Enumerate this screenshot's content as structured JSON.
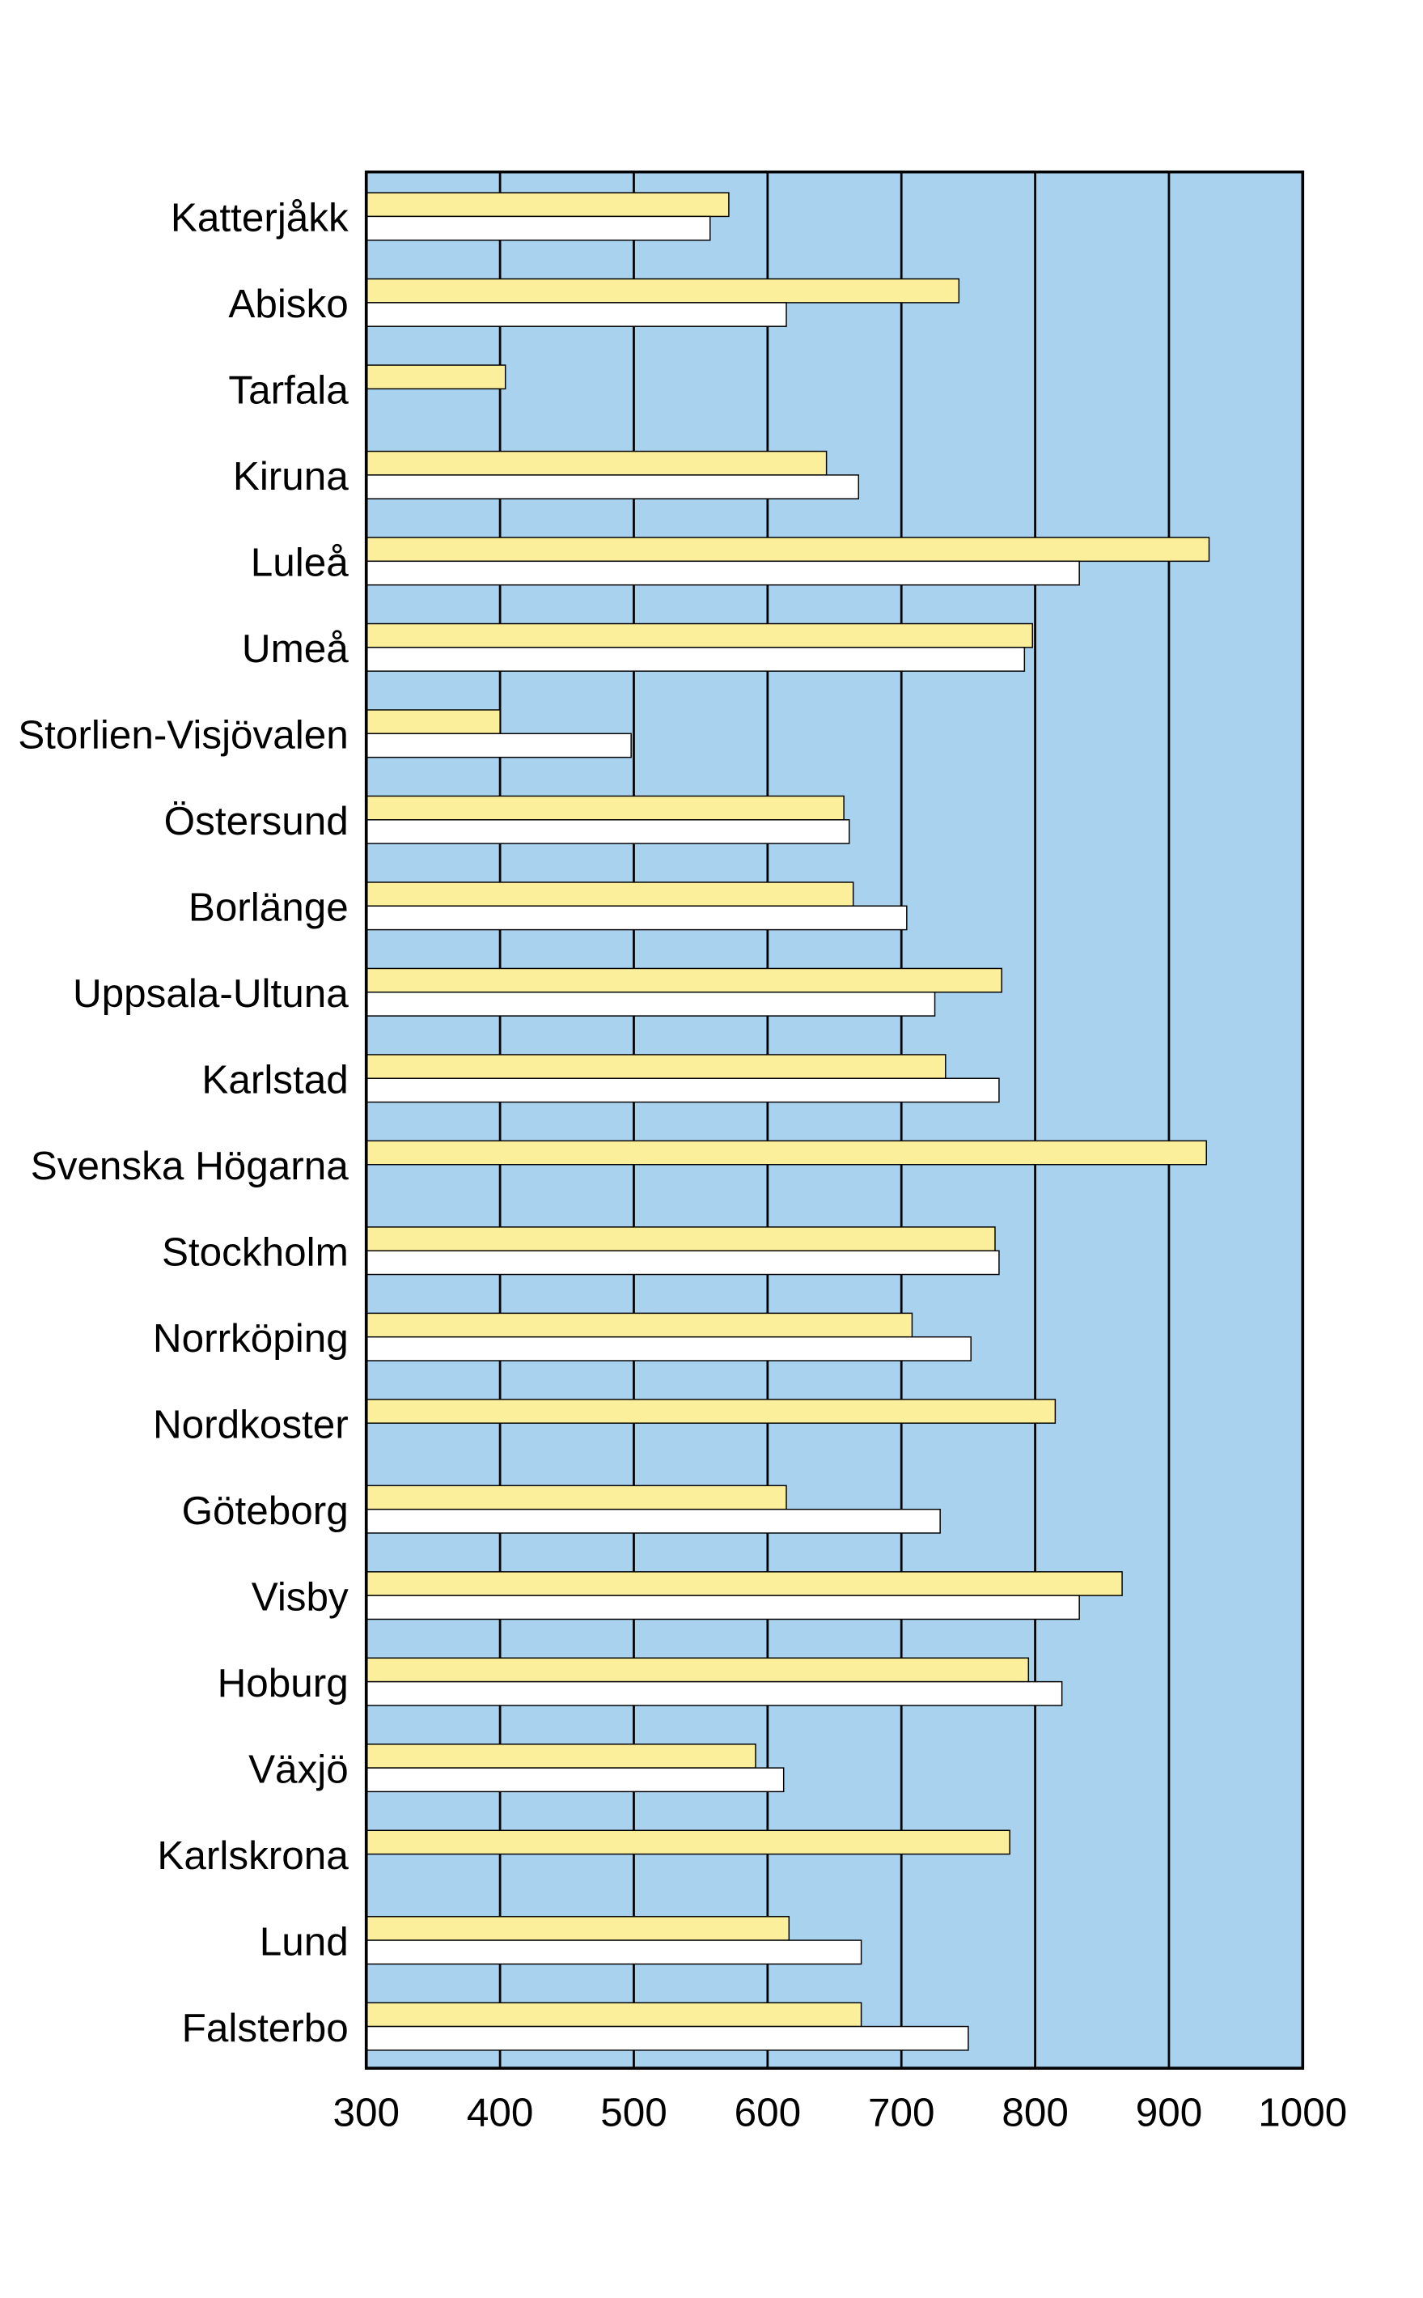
{
  "chart_data": {
    "type": "bar",
    "orientation": "horizontal",
    "title": "",
    "xlabel": "",
    "ylabel": "",
    "xlim": [
      300,
      1000
    ],
    "xticks": [
      "300",
      "400",
      "500",
      "600",
      "700",
      "800",
      "900",
      "1000"
    ],
    "grid": true,
    "categories": [
      "Katterjåkk",
      "Abisko",
      "Tarfala",
      "Kiruna",
      "Luleå",
      "Umeå",
      "Storlien-Visjövalen",
      "Östersund",
      "Borlänge",
      "Uppsala-Ultuna",
      "Karlstad",
      "Svenska Högarna",
      "Stockholm",
      "Norrköping",
      "Nordkoster",
      "Göteborg",
      "Visby",
      "Hoburg",
      "Växjö",
      "Karlskrona",
      "Lund",
      "Falsterbo"
    ],
    "series": [
      {
        "name": "series-yellow",
        "color": "#fcef9c",
        "values": [
          571,
          743,
          404,
          644,
          930,
          798,
          400,
          657,
          664,
          775,
          733,
          928,
          770,
          708,
          815,
          614,
          865,
          795,
          591,
          781,
          616,
          670
        ]
      },
      {
        "name": "series-white",
        "color": "#ffffff",
        "values": [
          557,
          614,
          null,
          668,
          833,
          792,
          498,
          661,
          704,
          725,
          773,
          null,
          773,
          752,
          null,
          729,
          833,
          820,
          612,
          null,
          670,
          750
        ]
      }
    ],
    "background_color": "#a8d2ee"
  }
}
